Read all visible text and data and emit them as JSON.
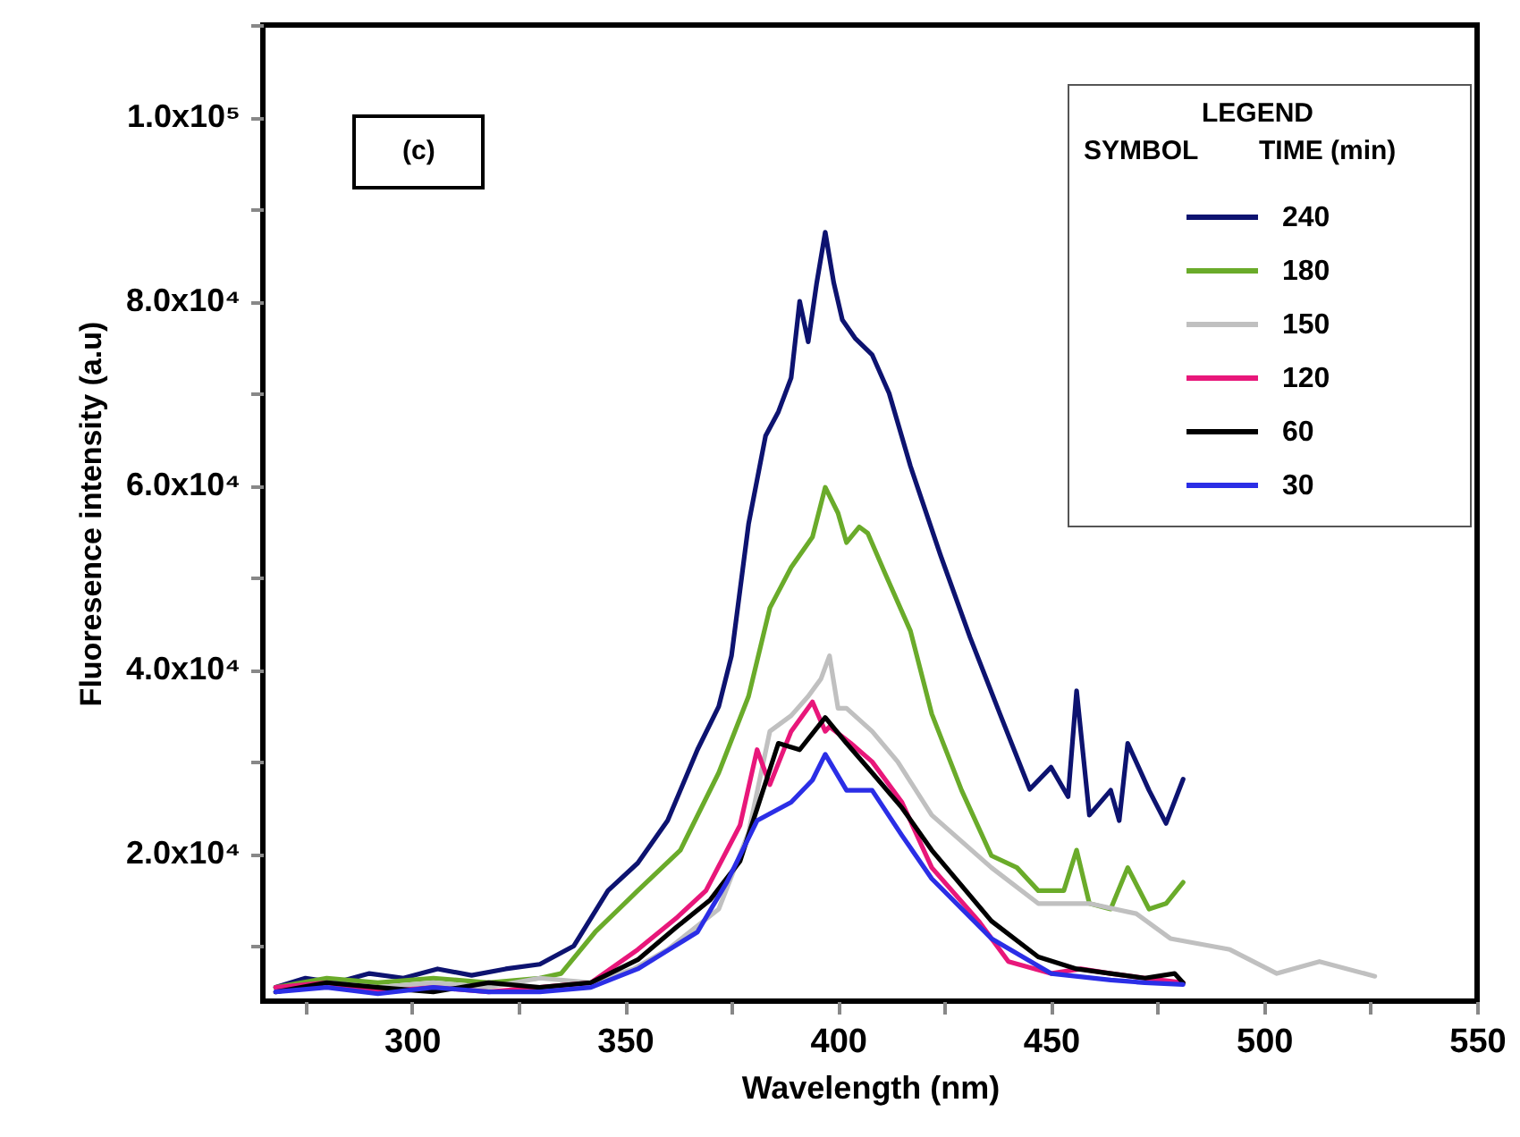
{
  "chart_data": {
    "type": "line",
    "xlabel": "Wavelength (nm)",
    "ylabel": "Fluoresence intensity (a.u)",
    "legend_title": "TIME (min)",
    "legend": "top right",
    "annotations": [
      "(c)",
      "LEGEND",
      "SYMBOL"
    ],
    "line_style": "solid",
    "marker": "none",
    "xlim": [
      265,
      550
    ],
    "xticks": [
      {
        "value": 275,
        "label": null
      },
      300,
      {
        "value": 325,
        "label": null
      },
      350,
      {
        "value": 375,
        "label": null
      },
      400,
      {
        "value": 425,
        "label": null
      },
      450,
      {
        "value": 475,
        "label": null
      },
      500,
      {
        "value": 525,
        "label": null
      },
      550
    ],
    "ylim": [
      4000,
      110000
    ],
    "yticks": [
      {
        "value": 10000,
        "label": null
      },
      {
        "value": 20000,
        "label": "2.0x10⁴"
      },
      {
        "value": 30000,
        "label": null
      },
      {
        "value": 40000,
        "label": "4.0x10⁴"
      },
      {
        "value": 50000,
        "label": null
      },
      {
        "value": 60000,
        "label": "6.0x10⁴"
      },
      {
        "value": 70000,
        "label": null
      },
      {
        "value": 80000,
        "label": "8.0x10⁴"
      },
      {
        "value": 90000,
        "label": null
      },
      {
        "value": 100000,
        "label": "1.0x10⁵"
      },
      {
        "value": 110000,
        "label": null
      }
    ],
    "series": [
      {
        "name": "240",
        "color": "#0d1370",
        "x": [
          268,
          275,
          282,
          290,
          298,
          306,
          314,
          322,
          330,
          338,
          346,
          353,
          360,
          367,
          372,
          375,
          379,
          383,
          386,
          389,
          391,
          393,
          395,
          397,
          399,
          401,
          404,
          408,
          412,
          417,
          424,
          431,
          438,
          445,
          450,
          454,
          456,
          459,
          464,
          466,
          468,
          473,
          477,
          481
        ],
        "values": [
          5500,
          6500,
          6000,
          7000,
          6500,
          7500,
          6800,
          7500,
          8000,
          10000,
          16000,
          19000,
          23600,
          31300,
          36000,
          41500,
          55800,
          65400,
          68000,
          71700,
          80000,
          75600,
          82000,
          87500,
          82000,
          78000,
          76000,
          74200,
          70000,
          62100,
          52500,
          43500,
          35200,
          27000,
          29400,
          26200,
          37700,
          24200,
          26900,
          23600,
          32000,
          26900,
          23300,
          28100
        ]
      },
      {
        "name": "180",
        "color": "#6aab2a",
        "x": [
          268,
          280,
          292,
          305,
          318,
          330,
          335,
          343,
          353,
          363,
          372,
          379,
          384,
          389,
          394,
          397,
          400,
          402,
          405,
          407,
          411,
          417,
          422,
          429,
          436,
          442,
          447,
          453,
          456,
          459,
          464,
          468,
          473,
          477,
          481
        ],
        "values": [
          5500,
          6500,
          6000,
          6500,
          6000,
          6500,
          7000,
          11500,
          16000,
          20400,
          28800,
          37100,
          46700,
          51100,
          54400,
          59800,
          57000,
          53800,
          55500,
          54800,
          50500,
          44200,
          35200,
          26900,
          19800,
          18500,
          16000,
          16000,
          20400,
          14600,
          14000,
          18500,
          14000,
          14600,
          16900
        ]
      },
      {
        "name": "150",
        "color": "#c0c0c0",
        "x": [
          268,
          280,
          292,
          305,
          318,
          330,
          342,
          352,
          360,
          372,
          379,
          384,
          389,
          393,
          396,
          398,
          400,
          402,
          408,
          414,
          422,
          436,
          447,
          459,
          470,
          478,
          492,
          503,
          513,
          526
        ],
        "values": [
          5000,
          6000,
          5500,
          6000,
          5500,
          6500,
          6000,
          7500,
          9600,
          14000,
          22300,
          33300,
          35000,
          37100,
          39000,
          41500,
          35800,
          35800,
          33300,
          30000,
          24200,
          18500,
          14600,
          14600,
          13500,
          10800,
          9600,
          7000,
          8300,
          6700
        ]
      },
      {
        "name": "120",
        "color": "#e8177a",
        "x": [
          268,
          280,
          292,
          305,
          318,
          330,
          342,
          353,
          362,
          369,
          377,
          381,
          384,
          389,
          394,
          397,
          398,
          403,
          408,
          415,
          422,
          433,
          440,
          450,
          457,
          464,
          472,
          481
        ],
        "values": [
          5500,
          6000,
          5000,
          5500,
          5000,
          5500,
          6000,
          9600,
          13000,
          16000,
          23100,
          31300,
          27500,
          33300,
          36500,
          33300,
          33800,
          32000,
          30000,
          25600,
          18500,
          12700,
          8300,
          7000,
          7500,
          7000,
          6500,
          6000
        ]
      },
      {
        "name": "60",
        "color": "#000000",
        "x": [
          268,
          280,
          292,
          305,
          318,
          330,
          342,
          353,
          362,
          370,
          377,
          386,
          391,
          397,
          402,
          408,
          415,
          422,
          436,
          447,
          456,
          464,
          472,
          479,
          481
        ],
        "values": [
          5000,
          6000,
          5500,
          5000,
          6000,
          5500,
          6000,
          8500,
          12000,
          15000,
          19200,
          32000,
          31300,
          34800,
          32000,
          28800,
          25000,
          20400,
          12700,
          8800,
          7500,
          7000,
          6500,
          7000,
          6000
        ]
      },
      {
        "name": "30",
        "color": "#2b2ee6",
        "x": [
          268,
          280,
          292,
          305,
          318,
          330,
          342,
          353,
          360,
          367,
          374,
          381,
          389,
          394,
          397,
          402,
          408,
          415,
          422,
          436,
          450,
          464,
          472,
          481
        ],
        "values": [
          5000,
          5500,
          4800,
          5500,
          5000,
          5000,
          5500,
          7500,
          9500,
          11500,
          17000,
          23600,
          25600,
          28000,
          30800,
          26900,
          26900,
          22000,
          17300,
          10800,
          7000,
          6300,
          6000,
          5800
        ]
      }
    ]
  }
}
